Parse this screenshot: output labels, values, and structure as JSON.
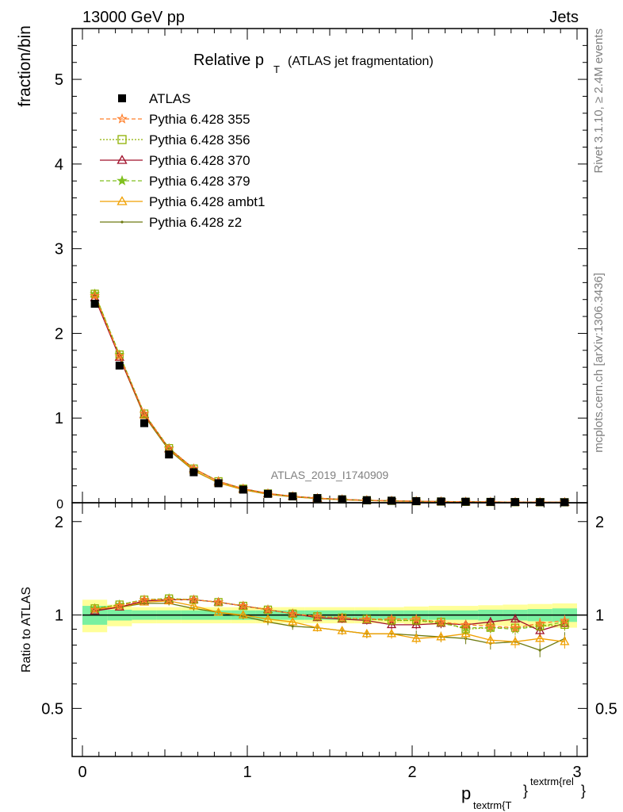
{
  "header": {
    "left": "13000 GeV pp",
    "right": "Jets"
  },
  "side_labels": {
    "rivet": "Rivet 3.1.10, ≥ 2.4M events",
    "arxiv": "mcplots.cern.ch [arXiv:1306.3436]"
  },
  "watermark": "ATLAS_2019_I1740909",
  "colors": {
    "ATLAS": "#000000",
    "p355": "#ff7f2a",
    "p356": "#8fb000",
    "p370": "#a0102a",
    "p379": "#80c020",
    "ambt1": "#f0a000",
    "z2": "#6e7a10",
    "band_inner": "#7af0a0",
    "band_outer": "#ffff99"
  },
  "chart_data": [
    {
      "type": "line",
      "title_main": "Relative p",
      "title_sub": "T",
      "title_rest": "(ATLAS jet fragmentation)",
      "ylabel": "fraction/bin",
      "ylim": [
        0,
        5.6
      ],
      "xlim": [
        -0.05,
        3.05
      ],
      "yticks": [
        "1",
        "2",
        "3",
        "4",
        "5"
      ],
      "ytick_zero": "0",
      "x": [
        0.075,
        0.225,
        0.375,
        0.525,
        0.675,
        0.825,
        0.975,
        1.125,
        1.275,
        1.425,
        1.575,
        1.725,
        1.875,
        2.025,
        2.175,
        2.325,
        2.475,
        2.625,
        2.775,
        2.925
      ],
      "reference": {
        "name": "ATLAS",
        "values": [
          2.35,
          1.62,
          0.94,
          0.57,
          0.36,
          0.23,
          0.155,
          0.105,
          0.075,
          0.055,
          0.04,
          0.03,
          0.024,
          0.019,
          0.015,
          0.012,
          0.01,
          0.008,
          0.007,
          0.006
        ]
      },
      "series": [
        {
          "name": "Pythia 6.428 355",
          "key": "p355",
          "marker": "star-open",
          "dash": "5,3"
        },
        {
          "name": "Pythia 6.428 356",
          "key": "p356",
          "marker": "square-open",
          "dash": "2,2"
        },
        {
          "name": "Pythia 6.428 370",
          "key": "p370",
          "marker": "triangle-open",
          "dash": ""
        },
        {
          "name": "Pythia 6.428 379",
          "key": "p379",
          "marker": "star-filled",
          "dash": "5,3"
        },
        {
          "name": "Pythia 6.428 ambt1",
          "key": "ambt1",
          "marker": "triangle-open",
          "dash": ""
        },
        {
          "name": "Pythia 6.428 z2",
          "key": "z2",
          "marker": "dot",
          "dash": ""
        }
      ]
    },
    {
      "type": "line",
      "ylabel": "Ratio to ATLAS",
      "ylim": [
        0.35,
        2.3
      ],
      "yticks": [
        "0.5",
        "1",
        "2"
      ],
      "xlabel": "p",
      "xlabel_sub": "textrm{T",
      "xlabel_sup": "textrm{rel",
      "xlabel_brace": "}",
      "xticks": [
        "0",
        "1",
        "2",
        "3"
      ],
      "band_inner": [
        0.07,
        0.04,
        0.035,
        0.035,
        0.035,
        0.035,
        0.035,
        0.035,
        0.035,
        0.035,
        0.035,
        0.035,
        0.035,
        0.035,
        0.035,
        0.035,
        0.04,
        0.04,
        0.045,
        0.05
      ],
      "band_outer": [
        0.12,
        0.08,
        0.06,
        0.06,
        0.06,
        0.06,
        0.06,
        0.06,
        0.06,
        0.06,
        0.06,
        0.06,
        0.06,
        0.065,
        0.07,
        0.07,
        0.075,
        0.08,
        0.085,
        0.09
      ],
      "ratios": {
        "p355": [
          1.04,
          1.07,
          1.12,
          1.12,
          1.12,
          1.1,
          1.07,
          1.04,
          1.01,
          0.99,
          0.98,
          0.97,
          0.97,
          0.97,
          0.95,
          0.93,
          0.92,
          0.91,
          0.94,
          0.96
        ],
        "p356": [
          1.05,
          1.08,
          1.12,
          1.13,
          1.12,
          1.1,
          1.07,
          1.04,
          1.01,
          0.99,
          0.98,
          0.97,
          0.96,
          0.96,
          0.95,
          0.9,
          0.91,
          0.91,
          0.92,
          0.93
        ],
        "p370": [
          1.03,
          1.06,
          1.11,
          1.12,
          1.12,
          1.1,
          1.07,
          1.04,
          1.01,
          0.98,
          0.97,
          0.96,
          0.93,
          0.93,
          0.94,
          0.93,
          0.95,
          0.97,
          0.89,
          0.94
        ],
        "p379": [
          1.05,
          1.08,
          1.12,
          1.13,
          1.12,
          1.1,
          1.07,
          1.04,
          1.01,
          0.99,
          0.98,
          0.97,
          0.96,
          0.96,
          0.94,
          0.91,
          0.91,
          0.9,
          0.92,
          0.95
        ],
        "ambt1": [
          1.05,
          1.06,
          1.1,
          1.11,
          1.07,
          1.02,
          1.0,
          0.97,
          0.95,
          0.91,
          0.89,
          0.87,
          0.87,
          0.84,
          0.85,
          0.87,
          0.83,
          0.82,
          0.84,
          0.82
        ],
        "z2": [
          1.04,
          1.06,
          1.09,
          1.09,
          1.05,
          1.02,
          0.99,
          0.95,
          0.92,
          0.91,
          0.89,
          0.87,
          0.87,
          0.86,
          0.85,
          0.84,
          0.81,
          0.82,
          0.77,
          0.84
        ]
      }
    }
  ]
}
